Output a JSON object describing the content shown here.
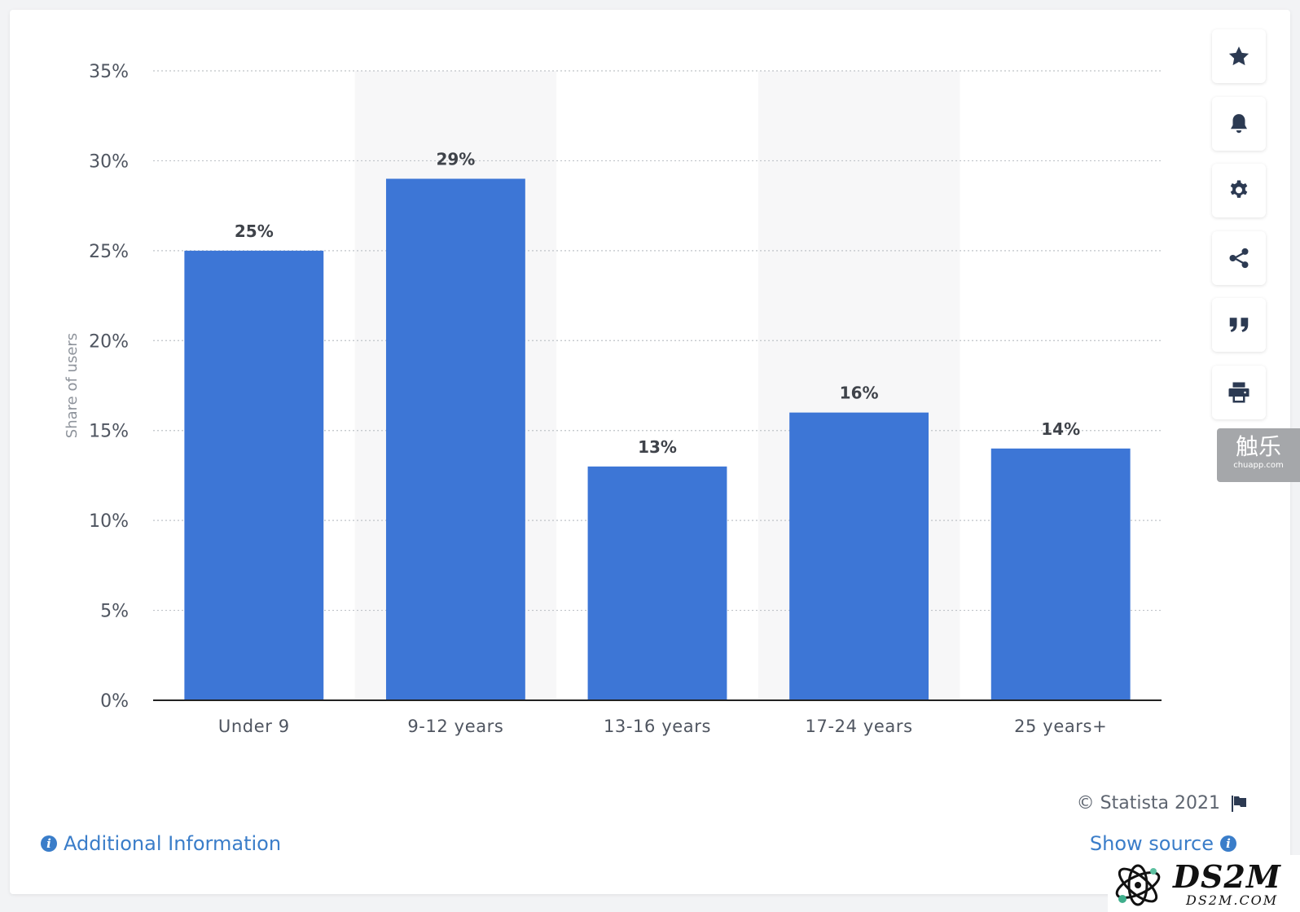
{
  "chart_data": {
    "type": "bar",
    "categories": [
      "Under 9",
      "9-12 years",
      "13-16 years",
      "17-24 years",
      "25 years+"
    ],
    "values": [
      25,
      29,
      13,
      16,
      14
    ],
    "value_labels": [
      "25%",
      "29%",
      "13%",
      "16%",
      "14%"
    ],
    "ylabel": "Share of users",
    "ylim": [
      0,
      35
    ],
    "yticks": [
      0,
      5,
      10,
      15,
      20,
      25,
      30,
      35
    ],
    "ytick_labels": [
      "0%",
      "5%",
      "10%",
      "15%",
      "20%",
      "25%",
      "30%",
      "35%"
    ],
    "bar_color": "#3d76d6",
    "grid": true,
    "alternating_band_color": "#f7f7f8"
  },
  "toolbar": {
    "items": [
      {
        "name": "favorite",
        "icon": "star-icon"
      },
      {
        "name": "notification",
        "icon": "bell-icon"
      },
      {
        "name": "settings",
        "icon": "gear-icon"
      },
      {
        "name": "share",
        "icon": "share-icon"
      },
      {
        "name": "cite",
        "icon": "quote-icon"
      },
      {
        "name": "print",
        "icon": "printer-icon"
      }
    ]
  },
  "side_tab": {
    "main": "触乐",
    "sub": "chuapp.com"
  },
  "footer": {
    "credit": "© Statista 2021",
    "additional_info": "Additional Information",
    "show_source": "Show source"
  },
  "watermark": {
    "main": "DS2M",
    "sub": "DS2M.COM"
  }
}
